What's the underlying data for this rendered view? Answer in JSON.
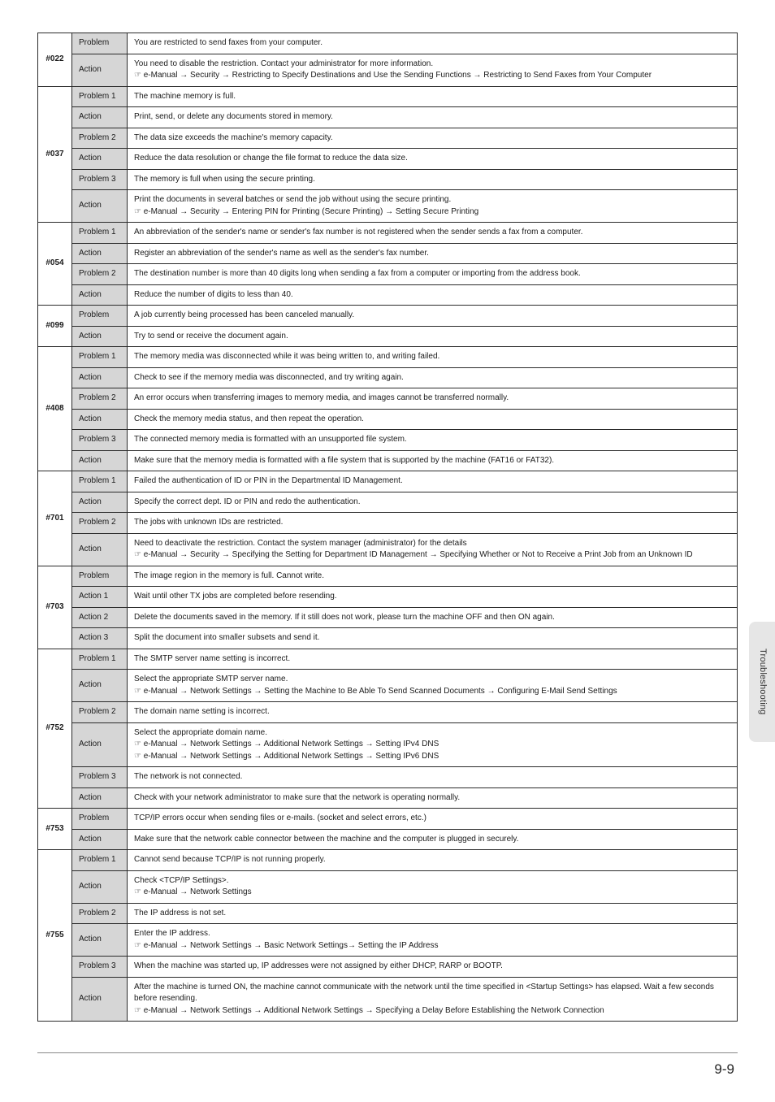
{
  "page_number": "9-9",
  "side_tab": "Troubleshooting",
  "colors": {
    "label_bg": "#d6d6d6",
    "border": "#2b2b2b",
    "text": "#1a1a1a",
    "tab_bg": "#e6e6e6"
  },
  "codes": [
    {
      "code": "#022",
      "rows": [
        {
          "label": "Problem",
          "desc": "You are restricted to send faxes from your computer."
        },
        {
          "label": "Action",
          "desc": "You need to disable the restriction. Contact your administrator for more information.\n☞ e-Manual → Security → Restricting to Specify Destinations and Use the Sending Functions → Restricting to Send Faxes from Your Computer"
        }
      ]
    },
    {
      "code": "#037",
      "rows": [
        {
          "label": "Problem 1",
          "desc": "The machine memory is full."
        },
        {
          "label": "Action",
          "desc": "Print, send, or delete any documents stored in memory."
        },
        {
          "label": "Problem 2",
          "desc": "The data size exceeds the machine's memory capacity."
        },
        {
          "label": "Action",
          "desc": "Reduce the data resolution or change the file format to reduce the data size."
        },
        {
          "label": "Problem 3",
          "desc": "The memory is full when using the secure printing."
        },
        {
          "label": "Action",
          "desc": "Print the documents in several batches or send the job without using the secure printing.\n☞ e-Manual → Security → Entering PIN for Printing (Secure Printing) → Setting Secure Printing"
        }
      ]
    },
    {
      "code": "#054",
      "rows": [
        {
          "label": "Problem 1",
          "desc": "An abbreviation of the sender's name or sender's fax number is not registered when the sender sends a fax from a computer."
        },
        {
          "label": "Action",
          "desc": "Register an abbreviation of the sender's name as well as the sender's fax number."
        },
        {
          "label": "Problem 2",
          "desc": "The destination number is more than 40 digits long when sending a fax from a computer or importing from the address book."
        },
        {
          "label": "Action",
          "desc": "Reduce the number of digits to less than 40."
        }
      ]
    },
    {
      "code": "#099",
      "rows": [
        {
          "label": "Problem",
          "desc": "A job currently being processed has been canceled manually."
        },
        {
          "label": "Action",
          "desc": "Try to send or receive the document again."
        }
      ]
    },
    {
      "code": "#408",
      "rows": [
        {
          "label": "Problem 1",
          "desc": "The memory media was disconnected while it was being written to, and writing failed."
        },
        {
          "label": "Action",
          "desc": "Check to see if the memory media was disconnected, and try writing again."
        },
        {
          "label": "Problem 2",
          "desc": "An error occurs when transferring images to memory media, and images cannot be transferred normally."
        },
        {
          "label": "Action",
          "desc": "Check the memory media status, and then repeat the operation."
        },
        {
          "label": "Problem 3",
          "desc": "The connected memory media is formatted with an unsupported file system."
        },
        {
          "label": "Action",
          "desc": "Make sure that the memory media is formatted with a file system that is supported by the machine (FAT16 or FAT32)."
        }
      ]
    },
    {
      "code": "#701",
      "rows": [
        {
          "label": "Problem 1",
          "desc": "Failed the authentication of ID or PIN in the Departmental ID Management."
        },
        {
          "label": "Action",
          "desc": "Specify the correct dept. ID or PIN and redo the authentication."
        },
        {
          "label": "Problem 2",
          "desc": "The jobs with unknown IDs are restricted."
        },
        {
          "label": "Action",
          "desc": "Need to deactivate the restriction. Contact the system manager (administrator) for the details\n☞ e-Manual → Security → Specifying the Setting for Department ID Management → Specifying Whether or Not to Receive a Print Job from an Unknown ID"
        }
      ]
    },
    {
      "code": "#703",
      "rows": [
        {
          "label": "Problem",
          "desc": "The image region in the memory is full. Cannot write."
        },
        {
          "label": "Action 1",
          "desc": "Wait until other TX jobs are completed before resending."
        },
        {
          "label": "Action 2",
          "desc": "Delete the documents saved in the memory. If it still does not work, please turn the machine OFF and then ON again."
        },
        {
          "label": "Action 3",
          "desc": "Split the document into smaller subsets and send it."
        }
      ]
    },
    {
      "code": "#752",
      "rows": [
        {
          "label": "Problem 1",
          "desc": "The SMTP server name setting is incorrect."
        },
        {
          "label": "Action",
          "desc": "Select the appropriate SMTP server name.\n☞ e-Manual → Network Settings → Setting the Machine to Be Able To Send Scanned Documents → Configuring E-Mail Send Settings"
        },
        {
          "label": "Problem 2",
          "desc": "The domain name setting is incorrect."
        },
        {
          "label": "Action",
          "desc": "Select the appropriate domain name.\n☞ e-Manual → Network Settings → Additional Network Settings → Setting IPv4 DNS\n☞ e-Manual → Network Settings → Additional Network Settings → Setting IPv6 DNS"
        },
        {
          "label": "Problem 3",
          "desc": "The network is not connected."
        },
        {
          "label": "Action",
          "desc": "Check with your network administrator to make sure that the network is operating normally."
        }
      ]
    },
    {
      "code": "#753",
      "rows": [
        {
          "label": "Problem",
          "desc": "TCP/IP errors occur when sending files or e-mails. (socket and select errors, etc.)"
        },
        {
          "label": "Action",
          "desc": "Make sure that the network cable connector between the machine and the computer is plugged in securely."
        }
      ]
    },
    {
      "code": "#755",
      "rows": [
        {
          "label": "Problem 1",
          "desc": "Cannot send because TCP/IP is not running properly."
        },
        {
          "label": "Action",
          "desc": "Check <TCP/IP Settings>.\n☞ e-Manual → Network Settings"
        },
        {
          "label": "Problem 2",
          "desc": "The IP address is not set."
        },
        {
          "label": "Action",
          "desc": "Enter the IP address.\n☞ e-Manual → Network Settings → Basic Network Settings→ Setting the IP Address"
        },
        {
          "label": "Problem 3",
          "desc": "When the machine was started up, IP addresses were not assigned by either DHCP, RARP or BOOTP."
        },
        {
          "label": "Action",
          "desc": "After the machine is turned ON, the machine cannot communicate with the network until the time specified in <Startup Settings> has elapsed. Wait a few seconds before resending.\n☞ e-Manual → Network Settings → Additional Network Settings → Specifying a Delay Before Establishing the Network Connection"
        }
      ]
    }
  ]
}
